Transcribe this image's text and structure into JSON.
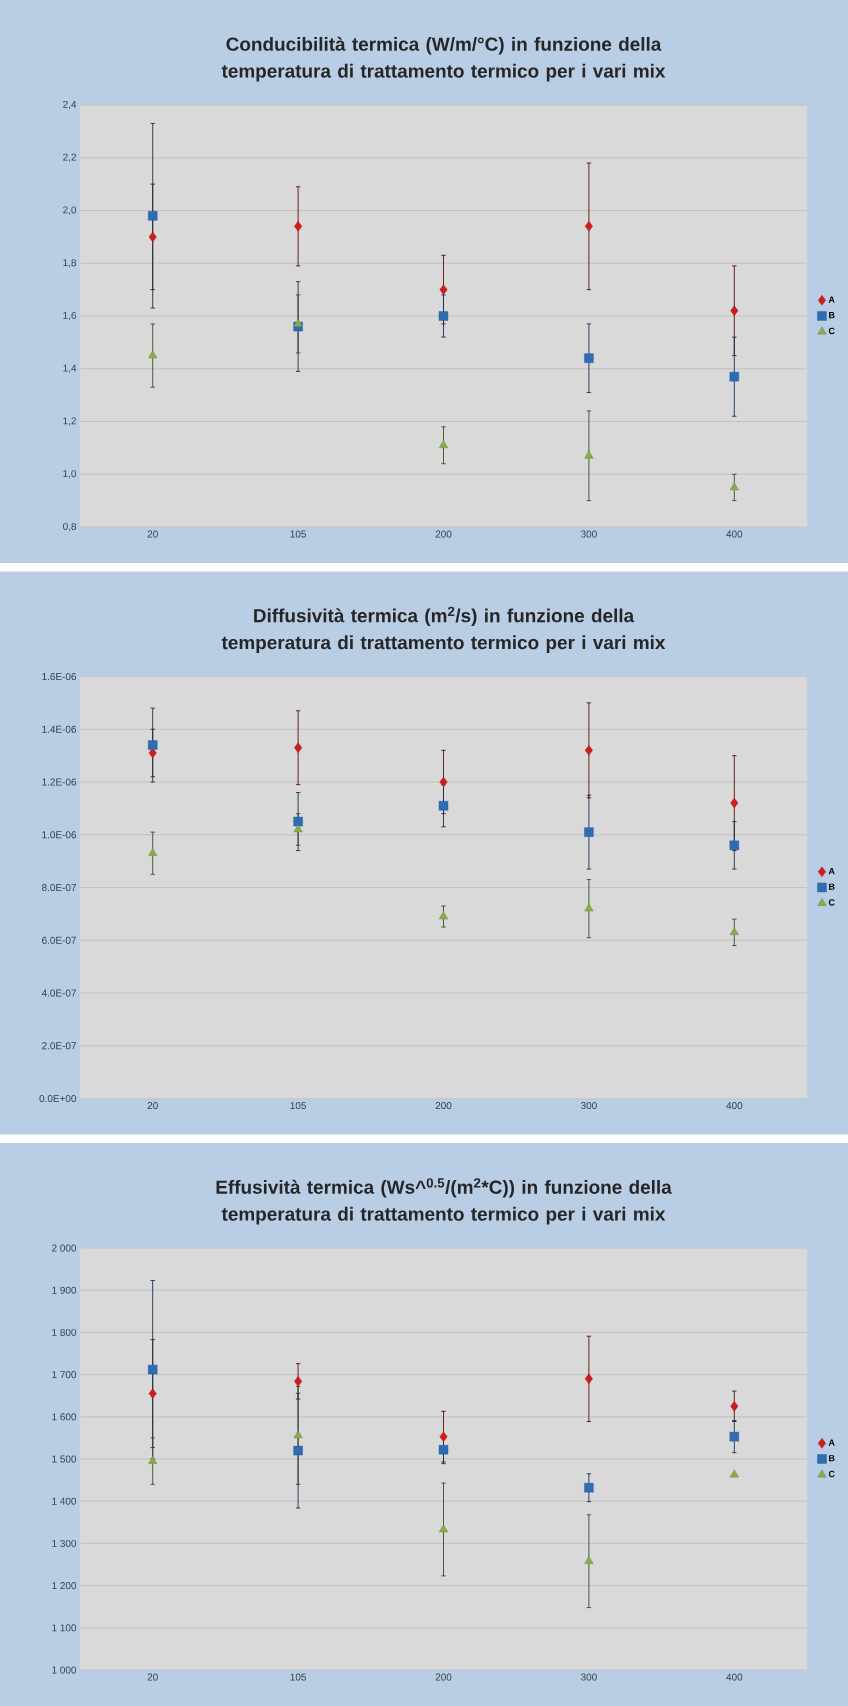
{
  "chart_data": [
    {
      "type": "scatter",
      "title": "Conducibilità termica (W/m/°C) in funzione della temperatura di trattamento termico per i vari mix",
      "categories": [
        "20",
        "105",
        "200",
        "300",
        "400"
      ],
      "ylim": [
        0.8,
        2.4
      ],
      "yticks": [
        {
          "value": 0.8,
          "label": "0,8"
        },
        {
          "value": 1.0,
          "label": "1,0"
        },
        {
          "value": 1.2,
          "label": "1,2"
        },
        {
          "value": 1.4,
          "label": "1,4"
        },
        {
          "value": 1.6,
          "label": "1,6"
        },
        {
          "value": 1.8,
          "label": "1,8"
        },
        {
          "value": 2.0,
          "label": "2,0"
        },
        {
          "value": 2.2,
          "label": "2,2"
        },
        {
          "value": 2.4,
          "label": "2,4"
        }
      ],
      "grid": "y",
      "legend": "right",
      "series": [
        {
          "name": "A",
          "color": "#d01c1c",
          "marker": "diamond",
          "values": [
            1.9,
            1.94,
            1.7,
            1.94,
            1.62
          ],
          "errors": [
            0.2,
            0.15,
            0.13,
            0.24,
            0.17
          ]
        },
        {
          "name": "B",
          "color": "#2e6db4",
          "marker": "square",
          "values": [
            1.98,
            1.56,
            1.6,
            1.44,
            1.37
          ],
          "errors": [
            0.35,
            0.17,
            0.08,
            0.13,
            0.15
          ]
        },
        {
          "name": "C",
          "color": "#8aaa4e",
          "marker": "triangle",
          "values": [
            1.45,
            1.57,
            1.11,
            1.07,
            0.95
          ],
          "errors": [
            0.12,
            0.11,
            0.07,
            0.17,
            0.05
          ]
        }
      ]
    },
    {
      "type": "scatter",
      "title": "Diffusività termica (m$^{2}$/s) in funzione della temperatura di trattamento termico per i vari mix",
      "categories": [
        "20",
        "105",
        "200",
        "300",
        "400"
      ],
      "ylim": [
        0,
        1.6e-06
      ],
      "yticks": [
        {
          "value": 0,
          "label": "0.0E+00"
        },
        {
          "value": 2e-07,
          "label": "2.0E-07"
        },
        {
          "value": 4e-07,
          "label": "4.0E-07"
        },
        {
          "value": 6e-07,
          "label": "6.0E-07"
        },
        {
          "value": 8e-07,
          "label": "8.0E-07"
        },
        {
          "value": 1e-06,
          "label": "1.0E-06"
        },
        {
          "value": 1.2e-06,
          "label": "1.2E-06"
        },
        {
          "value": 1.4e-06,
          "label": "1.4E-06"
        },
        {
          "value": 1.6e-06,
          "label": "1.6E-06"
        }
      ],
      "grid": "y",
      "legend": "right",
      "series": [
        {
          "name": "A",
          "color": "#d01c1c",
          "marker": "diamond",
          "values": [
            1.31e-06,
            1.33e-06,
            1.2e-06,
            1.32e-06,
            1.12e-06
          ],
          "errors": [
            9e-08,
            1.4e-07,
            1.2e-07,
            1.8e-07,
            1.8e-07
          ]
        },
        {
          "name": "B",
          "color": "#2e6db4",
          "marker": "square",
          "values": [
            1.34e-06,
            1.05e-06,
            1.11e-06,
            1.01e-06,
            9.6e-07
          ],
          "errors": [
            1.4e-07,
            1.1e-07,
            8e-08,
            1.4e-07,
            9e-08
          ]
        },
        {
          "name": "C",
          "color": "#8aaa4e",
          "marker": "triangle",
          "values": [
            9.3e-07,
            1.02e-06,
            6.9e-07,
            7.2e-07,
            6.3e-07
          ],
          "errors": [
            8e-08,
            6e-08,
            4e-08,
            1.1e-07,
            5e-08
          ]
        }
      ]
    },
    {
      "type": "scatter",
      "title": "Effusività termica (Ws^$^{0.5}$/(m$^{2}$*C)) in funzione della temperatura di trattamento termico per i vari mix",
      "categories": [
        "20",
        "105",
        "200",
        "300",
        "400"
      ],
      "ylim": [
        1000,
        2000
      ],
      "yticks": [
        {
          "value": 1000,
          "label": "1 000"
        },
        {
          "value": 1100,
          "label": "1 100"
        },
        {
          "value": 1200,
          "label": "1 200"
        },
        {
          "value": 1300,
          "label": "1 300"
        },
        {
          "value": 1400,
          "label": "1 400"
        },
        {
          "value": 1500,
          "label": "1 500"
        },
        {
          "value": 1600,
          "label": "1 600"
        },
        {
          "value": 1700,
          "label": "1 700"
        },
        {
          "value": 1800,
          "label": "1 800"
        },
        {
          "value": 1900,
          "label": "1 900"
        },
        {
          "value": 2000,
          "label": "2 000"
        }
      ],
      "grid": "y",
      "legend": "right",
      "series": [
        {
          "name": "A",
          "color": "#d01c1c",
          "marker": "diamond",
          "values": [
            1655,
            1684,
            1553,
            1690,
            1625
          ],
          "errors": [
            128,
            42,
            60,
            101,
            36
          ]
        },
        {
          "name": "B",
          "color": "#2e6db4",
          "marker": "square",
          "values": [
            1712,
            1520,
            1522,
            1432,
            1553
          ],
          "errors": [
            211,
            136,
            33,
            33,
            38
          ]
        },
        {
          "name": "C",
          "color": "#8aaa4e",
          "marker": "triangle",
          "values": [
            1495,
            1556,
            1333,
            1258,
            1463
          ],
          "errors": [
            55,
            116,
            110,
            110,
            null
          ]
        }
      ]
    }
  ]
}
